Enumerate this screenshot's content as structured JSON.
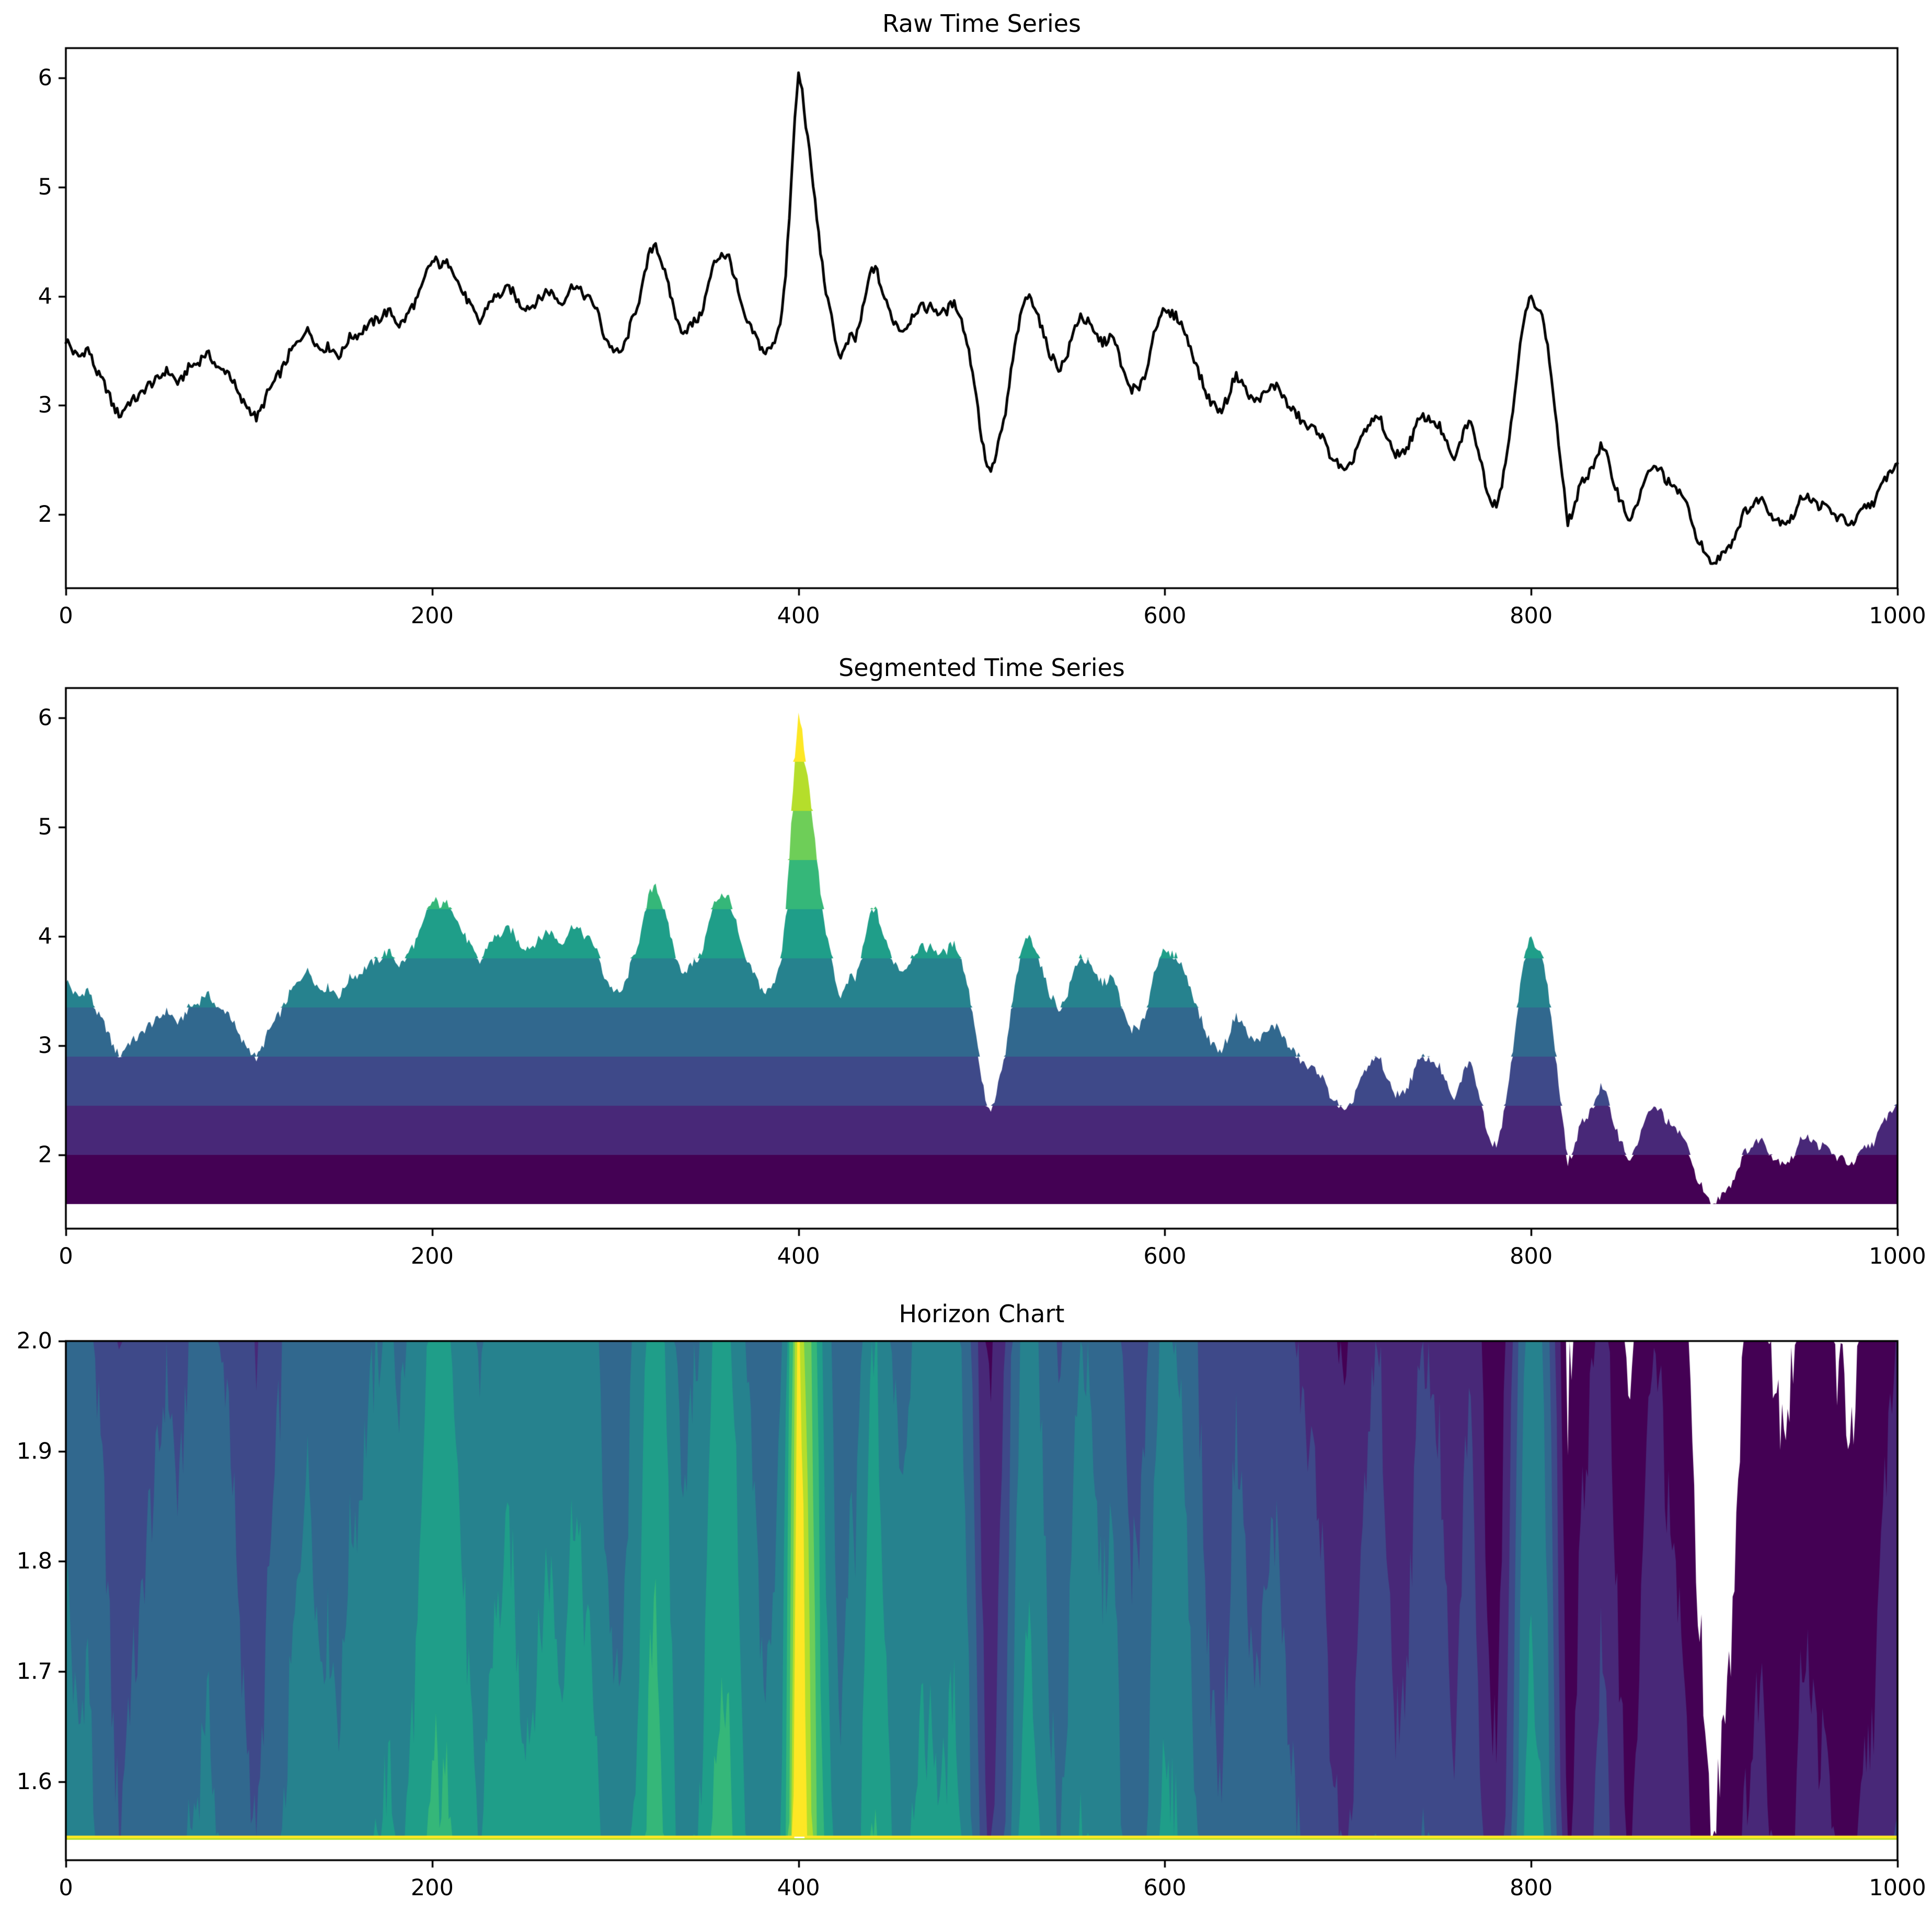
{
  "figure": {
    "background": "#ffffff"
  },
  "charts": [
    {
      "title": "Raw Time Series",
      "x_tick_labels": [
        "0",
        "200",
        "400",
        "600",
        "800",
        "1000"
      ],
      "y_tick_labels": [
        "2",
        "3",
        "4",
        "5",
        "6"
      ]
    },
    {
      "title": "Segmented Time Series",
      "x_tick_labels": [
        "0",
        "200",
        "400",
        "600",
        "800",
        "1000"
      ],
      "y_tick_labels": [
        "2",
        "3",
        "4",
        "5",
        "6"
      ]
    },
    {
      "title": "Horizon Chart",
      "x_tick_labels": [
        "0",
        "200",
        "400",
        "600",
        "800",
        "1000"
      ],
      "y_tick_labels": [
        "1.6",
        "1.7",
        "1.8",
        "1.9",
        "2.0"
      ]
    }
  ],
  "chart_data": [
    {
      "type": "line",
      "title": "Raw Time Series",
      "xlabel": "",
      "ylabel": "",
      "xlim": [
        0,
        1000
      ],
      "ylim": [
        1.325,
        6.275
      ],
      "x_ticks": [
        0,
        200,
        400,
        600,
        800,
        1000
      ],
      "y_ticks": [
        2,
        3,
        4,
        5,
        6
      ],
      "grid": false,
      "legend": false,
      "line_color": "#000000",
      "line_width": 5,
      "series_ref": "shared_series"
    },
    {
      "type": "area",
      "subtype": "segmented-bands",
      "title": "Segmented Time Series",
      "xlabel": "",
      "ylabel": "",
      "xlim": [
        0,
        1000
      ],
      "ylim": [
        1.325,
        6.275
      ],
      "x_ticks": [
        0,
        200,
        400,
        600,
        800,
        1000
      ],
      "y_ticks": [
        2,
        3,
        4,
        5,
        6
      ],
      "grid": false,
      "legend": false,
      "band_base": 1.55,
      "band_step": 0.45,
      "band_count": 10,
      "band_colors": [
        "#440154",
        "#482878",
        "#3e4989",
        "#31688e",
        "#26828e",
        "#1f9e89",
        "#35b779",
        "#6ece58",
        "#b5de2b",
        "#fde725"
      ],
      "band_boundaries": [
        1.55,
        2.0,
        2.45,
        2.9,
        3.35,
        3.8,
        4.25,
        4.7,
        5.15,
        5.6,
        6.05
      ],
      "series_ref": "shared_series"
    },
    {
      "type": "area",
      "subtype": "horizon",
      "title": "Horizon Chart",
      "xlabel": "",
      "ylabel": "",
      "xlim": [
        0,
        1000
      ],
      "ylim": [
        1.5287,
        2.0
      ],
      "x_ticks": [
        0,
        200,
        400,
        600,
        800,
        1000
      ],
      "y_ticks": [
        1.6,
        1.7,
        1.8,
        1.9,
        2.0
      ],
      "grid": false,
      "legend": false,
      "band_base": 1.55,
      "band_step": 0.45,
      "band_count": 10,
      "band_colors": [
        "#440154",
        "#482878",
        "#3e4989",
        "#31688e",
        "#26828e",
        "#1f9e89",
        "#35b779",
        "#6ece58",
        "#b5de2b",
        "#fde725"
      ],
      "baseline_value": 1.55,
      "baseline_color": "#fde725",
      "baseline_under_color": "#b5de2b",
      "series_ref": "shared_series"
    }
  ],
  "shared_series": {
    "n_points": 1001,
    "x_range": [
      0,
      1000
    ],
    "value_min": 1.55,
    "value_max": 6.05,
    "noise_amplitude": 0.045,
    "noise_slow_amplitude": 0.022,
    "anchors": [
      [
        0,
        3.58
      ],
      [
        4,
        3.5
      ],
      [
        8,
        3.46
      ],
      [
        12,
        3.5
      ],
      [
        16,
        3.36
      ],
      [
        20,
        3.22
      ],
      [
        25,
        3.02
      ],
      [
        30,
        2.92
      ],
      [
        34,
        3.0
      ],
      [
        38,
        3.08
      ],
      [
        42,
        3.12
      ],
      [
        46,
        3.18
      ],
      [
        50,
        3.26
      ],
      [
        54,
        3.3
      ],
      [
        58,
        3.27
      ],
      [
        62,
        3.22
      ],
      [
        66,
        3.3
      ],
      [
        70,
        3.38
      ],
      [
        75,
        3.46
      ],
      [
        80,
        3.42
      ],
      [
        84,
        3.34
      ],
      [
        88,
        3.3
      ],
      [
        92,
        3.2
      ],
      [
        96,
        3.05
      ],
      [
        100,
        2.95
      ],
      [
        104,
        2.9
      ],
      [
        108,
        3.02
      ],
      [
        112,
        3.15
      ],
      [
        116,
        3.3
      ],
      [
        120,
        3.38
      ],
      [
        125,
        3.55
      ],
      [
        130,
        3.68
      ],
      [
        134,
        3.64
      ],
      [
        138,
        3.55
      ],
      [
        142,
        3.52
      ],
      [
        146,
        3.5
      ],
      [
        150,
        3.48
      ],
      [
        154,
        3.58
      ],
      [
        158,
        3.65
      ],
      [
        162,
        3.7
      ],
      [
        166,
        3.72
      ],
      [
        170,
        3.8
      ],
      [
        174,
        3.85
      ],
      [
        178,
        3.82
      ],
      [
        182,
        3.76
      ],
      [
        186,
        3.8
      ],
      [
        190,
        3.92
      ],
      [
        194,
        4.08
      ],
      [
        198,
        4.25
      ],
      [
        202,
        4.33
      ],
      [
        206,
        4.3
      ],
      [
        210,
        4.28
      ],
      [
        214,
        4.15
      ],
      [
        218,
        4.0
      ],
      [
        222,
        3.85
      ],
      [
        226,
        3.78
      ],
      [
        230,
        3.9
      ],
      [
        234,
        3.98
      ],
      [
        238,
        4.05
      ],
      [
        242,
        4.06
      ],
      [
        246,
        3.98
      ],
      [
        250,
        3.92
      ],
      [
        254,
        3.88
      ],
      [
        258,
        3.98
      ],
      [
        262,
        4.05
      ],
      [
        266,
        4.0
      ],
      [
        270,
        3.96
      ],
      [
        274,
        4.02
      ],
      [
        278,
        4.1
      ],
      [
        282,
        4.05
      ],
      [
        286,
        3.95
      ],
      [
        290,
        3.88
      ],
      [
        294,
        3.65
      ],
      [
        298,
        3.5
      ],
      [
        302,
        3.48
      ],
      [
        306,
        3.6
      ],
      [
        310,
        3.8
      ],
      [
        314,
        4.05
      ],
      [
        318,
        4.35
      ],
      [
        322,
        4.48
      ],
      [
        326,
        4.3
      ],
      [
        330,
        4.0
      ],
      [
        334,
        3.75
      ],
      [
        338,
        3.7
      ],
      [
        342,
        3.72
      ],
      [
        346,
        3.82
      ],
      [
        350,
        4.05
      ],
      [
        354,
        4.28
      ],
      [
        358,
        4.42
      ],
      [
        362,
        4.35
      ],
      [
        366,
        4.1
      ],
      [
        370,
        3.85
      ],
      [
        374,
        3.68
      ],
      [
        378,
        3.58
      ],
      [
        382,
        3.5
      ],
      [
        386,
        3.52
      ],
      [
        390,
        3.78
      ],
      [
        393,
        4.2
      ],
      [
        396,
        5.0
      ],
      [
        398,
        5.6
      ],
      [
        400,
        6.05
      ],
      [
        402,
        5.9
      ],
      [
        404,
        5.6
      ],
      [
        407,
        5.15
      ],
      [
        410,
        4.7
      ],
      [
        413,
        4.3
      ],
      [
        416,
        3.95
      ],
      [
        419,
        3.7
      ],
      [
        422,
        3.45
      ],
      [
        425,
        3.52
      ],
      [
        428,
        3.62
      ],
      [
        431,
        3.58
      ],
      [
        434,
        3.8
      ],
      [
        437,
        4.05
      ],
      [
        440,
        4.25
      ],
      [
        443,
        4.2
      ],
      [
        446,
        4.05
      ],
      [
        449,
        3.9
      ],
      [
        452,
        3.75
      ],
      [
        456,
        3.7
      ],
      [
        460,
        3.76
      ],
      [
        464,
        3.85
      ],
      [
        468,
        3.92
      ],
      [
        472,
        3.9
      ],
      [
        476,
        3.84
      ],
      [
        480,
        3.88
      ],
      [
        484,
        3.92
      ],
      [
        488,
        3.85
      ],
      [
        492,
        3.6
      ],
      [
        496,
        3.2
      ],
      [
        500,
        2.7
      ],
      [
        504,
        2.4
      ],
      [
        507,
        2.45
      ],
      [
        510,
        2.7
      ],
      [
        513,
        2.95
      ],
      [
        516,
        3.3
      ],
      [
        520,
        3.7
      ],
      [
        524,
        4.02
      ],
      [
        527,
        3.98
      ],
      [
        530,
        3.85
      ],
      [
        534,
        3.65
      ],
      [
        538,
        3.45
      ],
      [
        542,
        3.32
      ],
      [
        546,
        3.45
      ],
      [
        550,
        3.65
      ],
      [
        554,
        3.82
      ],
      [
        558,
        3.78
      ],
      [
        562,
        3.62
      ],
      [
        566,
        3.58
      ],
      [
        570,
        3.65
      ],
      [
        574,
        3.5
      ],
      [
        578,
        3.28
      ],
      [
        582,
        3.15
      ],
      [
        586,
        3.12
      ],
      [
        590,
        3.35
      ],
      [
        594,
        3.65
      ],
      [
        598,
        3.85
      ],
      [
        602,
        3.86
      ],
      [
        606,
        3.8
      ],
      [
        610,
        3.72
      ],
      [
        614,
        3.55
      ],
      [
        618,
        3.3
      ],
      [
        622,
        3.15
      ],
      [
        626,
        3.02
      ],
      [
        630,
        2.92
      ],
      [
        634,
        3.08
      ],
      [
        638,
        3.25
      ],
      [
        642,
        3.22
      ],
      [
        646,
        3.1
      ],
      [
        650,
        3.02
      ],
      [
        654,
        3.1
      ],
      [
        658,
        3.18
      ],
      [
        662,
        3.15
      ],
      [
        666,
        3.05
      ],
      [
        670,
        2.95
      ],
      [
        674,
        2.85
      ],
      [
        678,
        2.82
      ],
      [
        682,
        2.78
      ],
      [
        686,
        2.7
      ],
      [
        690,
        2.58
      ],
      [
        694,
        2.45
      ],
      [
        698,
        2.38
      ],
      [
        702,
        2.48
      ],
      [
        706,
        2.65
      ],
      [
        710,
        2.78
      ],
      [
        714,
        2.88
      ],
      [
        718,
        2.85
      ],
      [
        722,
        2.68
      ],
      [
        726,
        2.55
      ],
      [
        730,
        2.55
      ],
      [
        734,
        2.7
      ],
      [
        738,
        2.82
      ],
      [
        742,
        2.9
      ],
      [
        746,
        2.88
      ],
      [
        750,
        2.78
      ],
      [
        754,
        2.65
      ],
      [
        757,
        2.52
      ],
      [
        760,
        2.55
      ],
      [
        763,
        2.75
      ],
      [
        766,
        2.88
      ],
      [
        769,
        2.75
      ],
      [
        772,
        2.5
      ],
      [
        775,
        2.3
      ],
      [
        778,
        2.15
      ],
      [
        781,
        2.1
      ],
      [
        784,
        2.25
      ],
      [
        787,
        2.6
      ],
      [
        790,
        3.0
      ],
      [
        793,
        3.4
      ],
      [
        796,
        3.75
      ],
      [
        799,
        4.0
      ],
      [
        802,
        3.95
      ],
      [
        805,
        3.85
      ],
      [
        808,
        3.65
      ],
      [
        811,
        3.3
      ],
      [
        814,
        2.8
      ],
      [
        817,
        2.3
      ],
      [
        820,
        1.95
      ],
      [
        823,
        2.05
      ],
      [
        826,
        2.2
      ],
      [
        830,
        2.35
      ],
      [
        834,
        2.48
      ],
      [
        838,
        2.6
      ],
      [
        841,
        2.55
      ],
      [
        844,
        2.38
      ],
      [
        848,
        2.15
      ],
      [
        852,
        2.0
      ],
      [
        855,
        1.98
      ],
      [
        858,
        2.1
      ],
      [
        861,
        2.25
      ],
      [
        864,
        2.38
      ],
      [
        867,
        2.45
      ],
      [
        870,
        2.4
      ],
      [
        873,
        2.32
      ],
      [
        876,
        2.3
      ],
      [
        879,
        2.22
      ],
      [
        882,
        2.18
      ],
      [
        885,
        2.08
      ],
      [
        888,
        1.92
      ],
      [
        891,
        1.78
      ],
      [
        894,
        1.65
      ],
      [
        897,
        1.58
      ],
      [
        900,
        1.56
      ],
      [
        903,
        1.6
      ],
      [
        906,
        1.68
      ],
      [
        909,
        1.75
      ],
      [
        912,
        1.85
      ],
      [
        915,
        1.95
      ],
      [
        918,
        2.05
      ],
      [
        921,
        2.1
      ],
      [
        924,
        2.14
      ],
      [
        927,
        2.1
      ],
      [
        930,
        2.05
      ],
      [
        933,
        1.98
      ],
      [
        936,
        1.93
      ],
      [
        939,
        1.92
      ],
      [
        942,
        1.98
      ],
      [
        945,
        2.06
      ],
      [
        948,
        2.14
      ],
      [
        951,
        2.18
      ],
      [
        954,
        2.14
      ],
      [
        957,
        2.08
      ],
      [
        960,
        2.05
      ],
      [
        963,
        2.06
      ],
      [
        966,
        2.0
      ],
      [
        969,
        1.95
      ],
      [
        972,
        1.93
      ],
      [
        975,
        1.92
      ],
      [
        978,
        1.97
      ],
      [
        981,
        2.02
      ],
      [
        984,
        2.08
      ],
      [
        987,
        2.14
      ],
      [
        990,
        2.2
      ],
      [
        993,
        2.3
      ],
      [
        996,
        2.4
      ],
      [
        1000,
        2.5
      ]
    ]
  }
}
